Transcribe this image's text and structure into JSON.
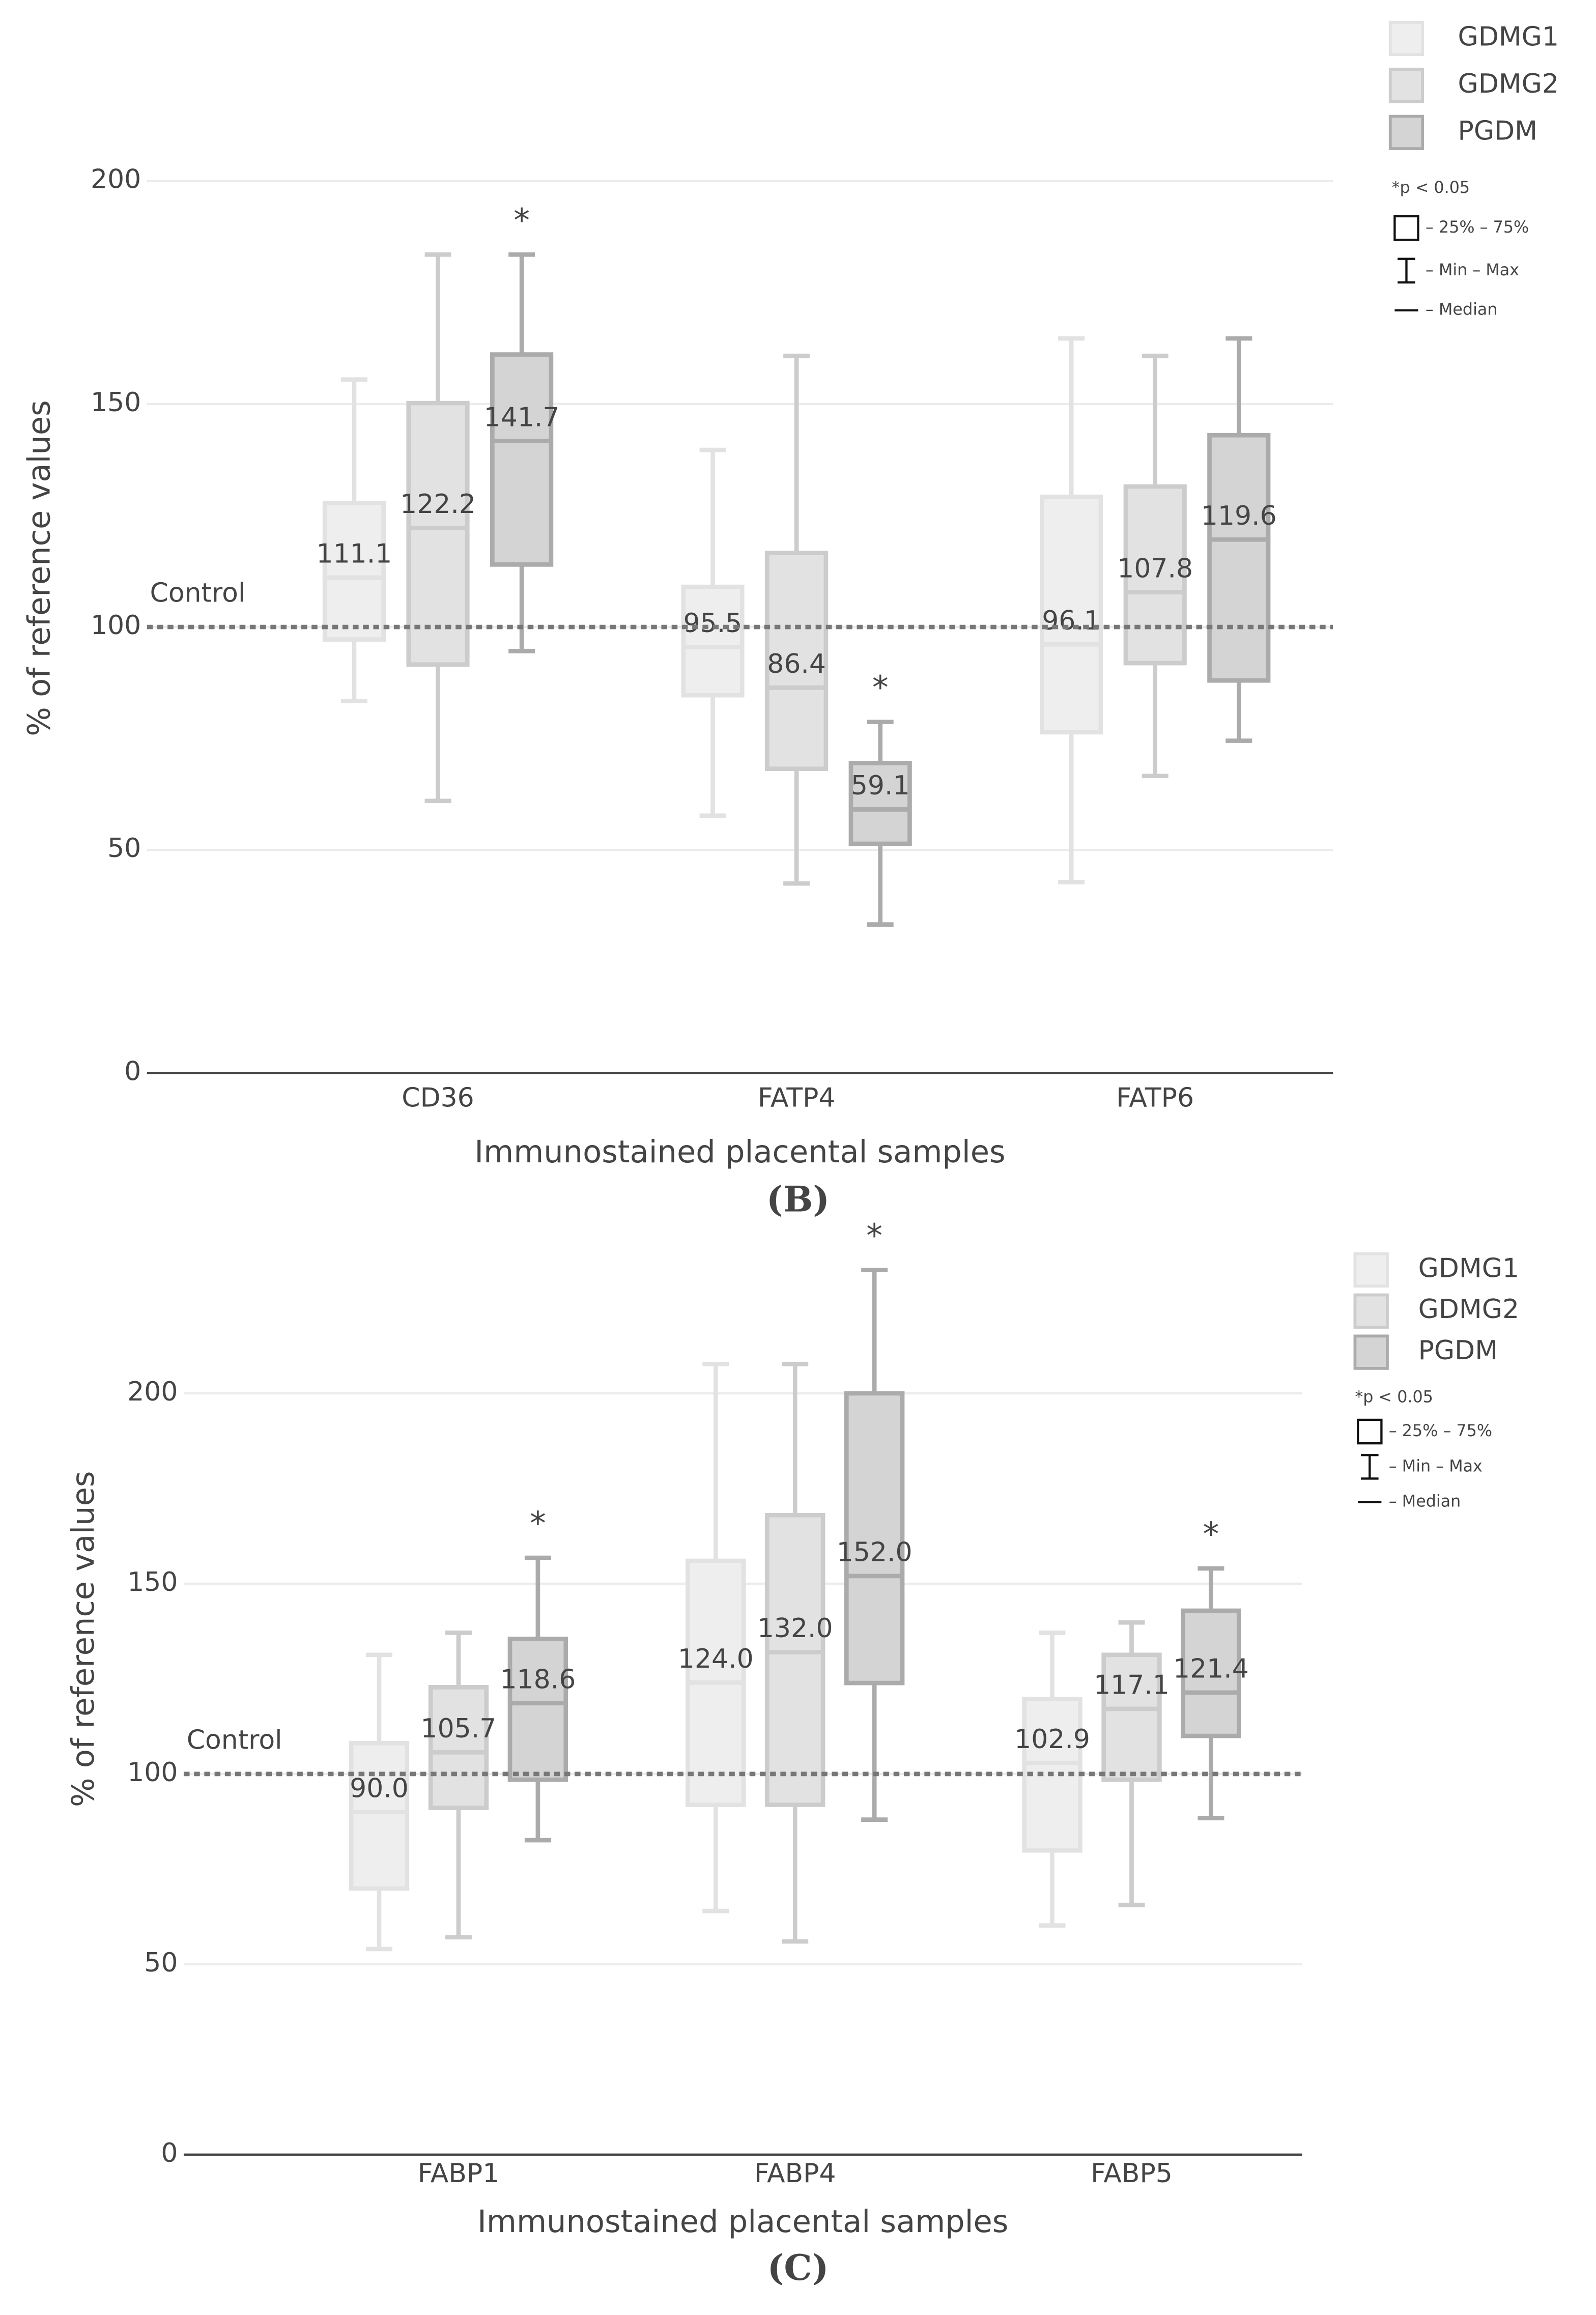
{
  "chart_data": [
    {
      "type": "box",
      "panel_label": "(B)",
      "x_label": "Immunostained placental samples",
      "y_label": "% of reference values",
      "categories": [
        "CD36",
        "FATP4",
        "FATP6"
      ],
      "ylim": [
        0,
        200
      ],
      "yticks": [
        0,
        50,
        100,
        150,
        200
      ],
      "grid": true,
      "reference_line": {
        "value": 100,
        "label": "Control"
      },
      "significance_mark": "*",
      "legend_notes": [
        "*p < 0.05",
        "– 25% – 75%",
        "– Min – Max",
        "– Median"
      ],
      "series": [
        {
          "name": "GDMG1",
          "color": "#e2e2e2",
          "fill": "#eeeeee",
          "min": [
            83.4,
            57.7,
            42.8
          ],
          "q1": [
            97.2,
            84.7,
            76.4
          ],
          "median": [
            111.1,
            95.5,
            96.1
          ],
          "q3": [
            127.8,
            109,
            129.2
          ],
          "max": [
            155.5,
            139.7,
            164.7
          ],
          "significant": [
            false,
            false,
            false
          ]
        },
        {
          "name": "GDMG2",
          "color": "#cccccc",
          "fill": "#e2e2e2",
          "min": [
            61,
            42.5,
            66.6
          ],
          "q1": [
            91.6,
            68.2,
            91.9
          ],
          "median": [
            122.2,
            86.4,
            107.8
          ],
          "q3": [
            150.2,
            116.6,
            131.5
          ],
          "max": [
            183.5,
            160.8,
            160.8
          ],
          "significant": [
            false,
            false,
            false
          ]
        },
        {
          "name": "PGDM",
          "color": "#ababab",
          "fill": "#d4d4d4",
          "min": [
            94.6,
            33.3,
            74.5
          ],
          "q1": [
            114,
            51.4,
            88
          ],
          "median": [
            141.7,
            59.1,
            119.6
          ],
          "q3": [
            161.1,
            69.5,
            143
          ],
          "max": [
            183.5,
            78.7,
            164.7
          ],
          "significant": [
            true,
            true,
            false
          ]
        }
      ]
    },
    {
      "type": "box",
      "panel_label": "(C)",
      "x_label": "Immunostained placental samples",
      "y_label": "% of reference values",
      "categories": [
        "FABP1",
        "FABP4",
        "FABP5"
      ],
      "ylim": [
        0,
        240
      ],
      "yticks": [
        0,
        50,
        100,
        150,
        200
      ],
      "grid": true,
      "reference_line": {
        "value": 100,
        "label": "Control"
      },
      "significance_mark": "*",
      "legend_notes": [
        "*p < 0.05",
        "– 25% – 75%",
        "– Min – Max",
        "– Median"
      ],
      "series": [
        {
          "name": "GDMG1",
          "color": "#e2e2e2",
          "fill": "#eeeeee",
          "min": [
            54,
            64,
            60.2
          ],
          "q1": [
            69.9,
            91.9,
            79.9
          ],
          "median": [
            90.0,
            124.0,
            102.9
          ],
          "value_labels": [
            "90.0",
            "124.0",
            "102.9"
          ],
          "q3": [
            108.1,
            156,
            119.7
          ],
          "max": [
            131.3,
            207.7,
            137.1
          ],
          "significant": [
            false,
            false,
            false
          ]
        },
        {
          "name": "GDMG2",
          "color": "#cccccc",
          "fill": "#e2e2e2",
          "min": [
            57.1,
            56,
            65.6
          ],
          "q1": [
            91.1,
            91.9,
            98.5
          ],
          "median": [
            105.7,
            132.0,
            117.1
          ],
          "value_labels": [
            "105.7",
            "132.0",
            "117.1"
          ],
          "q3": [
            122.8,
            168,
            131.3
          ],
          "max": [
            137.1,
            207.7,
            139.8
          ],
          "significant": [
            false,
            false,
            false
          ]
        },
        {
          "name": "PGDM",
          "color": "#ababab",
          "fill": "#d4d4d4",
          "min": [
            82.6,
            88,
            88.4
          ],
          "q1": [
            98.5,
            123.9,
            110
          ],
          "median": [
            118.6,
            152.0,
            121.4
          ],
          "value_labels": [
            "118.6",
            "152.0",
            "121.4"
          ],
          "q3": [
            135.5,
            200,
            142.9
          ],
          "max": [
            156.8,
            232.4,
            154
          ],
          "significant": [
            true,
            true,
            true
          ]
        }
      ]
    }
  ]
}
